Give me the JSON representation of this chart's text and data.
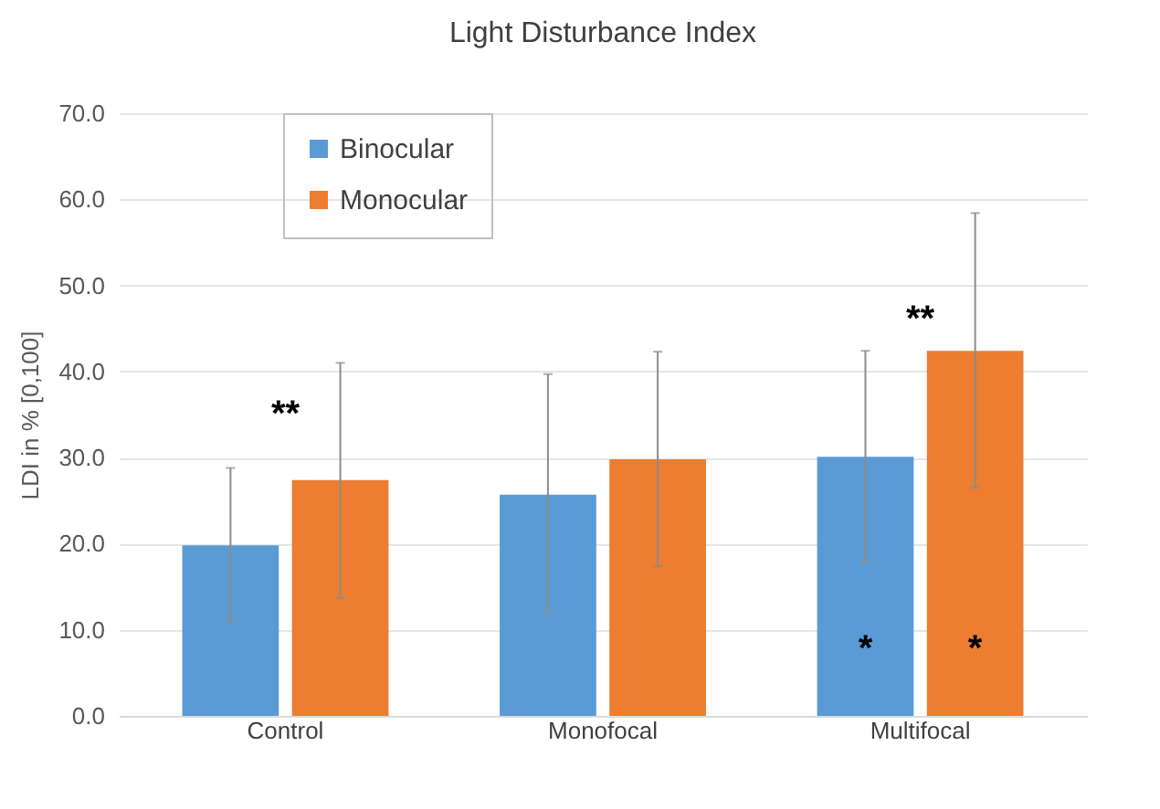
{
  "chart_data": {
    "type": "bar",
    "title": "Light Disturbance Index",
    "ylabel": "LDI in % [0,100]",
    "categories": [
      "Control",
      "Monofocal",
      "Multifocal"
    ],
    "series": [
      {
        "name": "Binocular",
        "color": "#5b9bd5",
        "values": [
          19.8,
          25.7,
          30.1
        ],
        "errors": [
          [
            10.9,
            28.8
          ],
          [
            11.8,
            39.7
          ],
          [
            17.9,
            42.4
          ]
        ]
      },
      {
        "name": "Monocular",
        "color": "#ed7d31",
        "values": [
          27.4,
          29.8,
          42.4
        ],
        "errors": [
          [
            13.7,
            41.0
          ],
          [
            17.4,
            42.3
          ],
          [
            26.5,
            58.4
          ]
        ]
      }
    ],
    "ylim": [
      0,
      70
    ],
    "yticks": [
      {
        "value": 0,
        "label": "0.0"
      },
      {
        "value": 10,
        "label": "10.0"
      },
      {
        "value": 20,
        "label": "20.0"
      },
      {
        "value": 30,
        "label": "30.0"
      },
      {
        "value": 40,
        "label": "40.0"
      },
      {
        "value": 50,
        "label": "50.0"
      },
      {
        "value": 60,
        "label": "60.0"
      },
      {
        "value": 70,
        "label": "70.0"
      }
    ],
    "grid": "y",
    "legend": "top left",
    "annotations": [
      "**",
      "**",
      {
        "text": "*",
        "x": "Multifocal",
        "y": 7.7
      },
      {
        "text": "*",
        "x": "Multifocal",
        "y": 7.7
      }
    ]
  }
}
